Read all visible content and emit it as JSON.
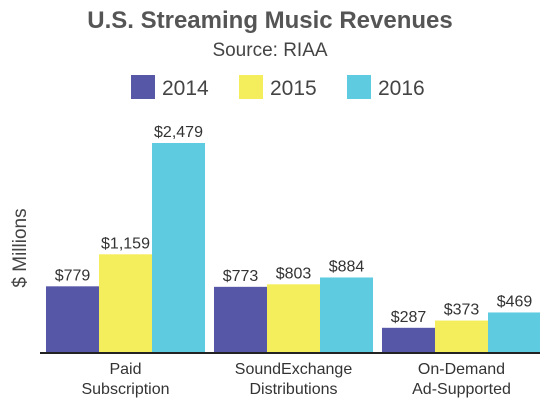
{
  "chart_data": {
    "type": "bar",
    "title": "U.S. Streaming Music Revenues",
    "subtitle": "Source: RIAA",
    "ylabel": "$ Millions",
    "xlabel": "",
    "legend_position": "top",
    "grid": false,
    "ylim": [
      0,
      2479
    ],
    "categories": [
      [
        "Paid",
        "Subscription"
      ],
      [
        "SoundExchange",
        "Distributions"
      ],
      [
        "On-Demand",
        "Ad-Supported"
      ]
    ],
    "series": [
      {
        "name": "2014",
        "color": "#5757a8",
        "values": [
          779,
          773,
          287
        ],
        "labels": [
          "$779",
          "$773",
          "$287"
        ]
      },
      {
        "name": "2015",
        "color": "#f5ee5c",
        "values": [
          1159,
          803,
          373
        ],
        "labels": [
          "$1,159",
          "$803",
          "$373"
        ]
      },
      {
        "name": "2016",
        "color": "#5ecbe1",
        "values": [
          2479,
          884,
          469
        ],
        "labels": [
          "$2,479",
          "$884",
          "$469"
        ]
      }
    ]
  }
}
